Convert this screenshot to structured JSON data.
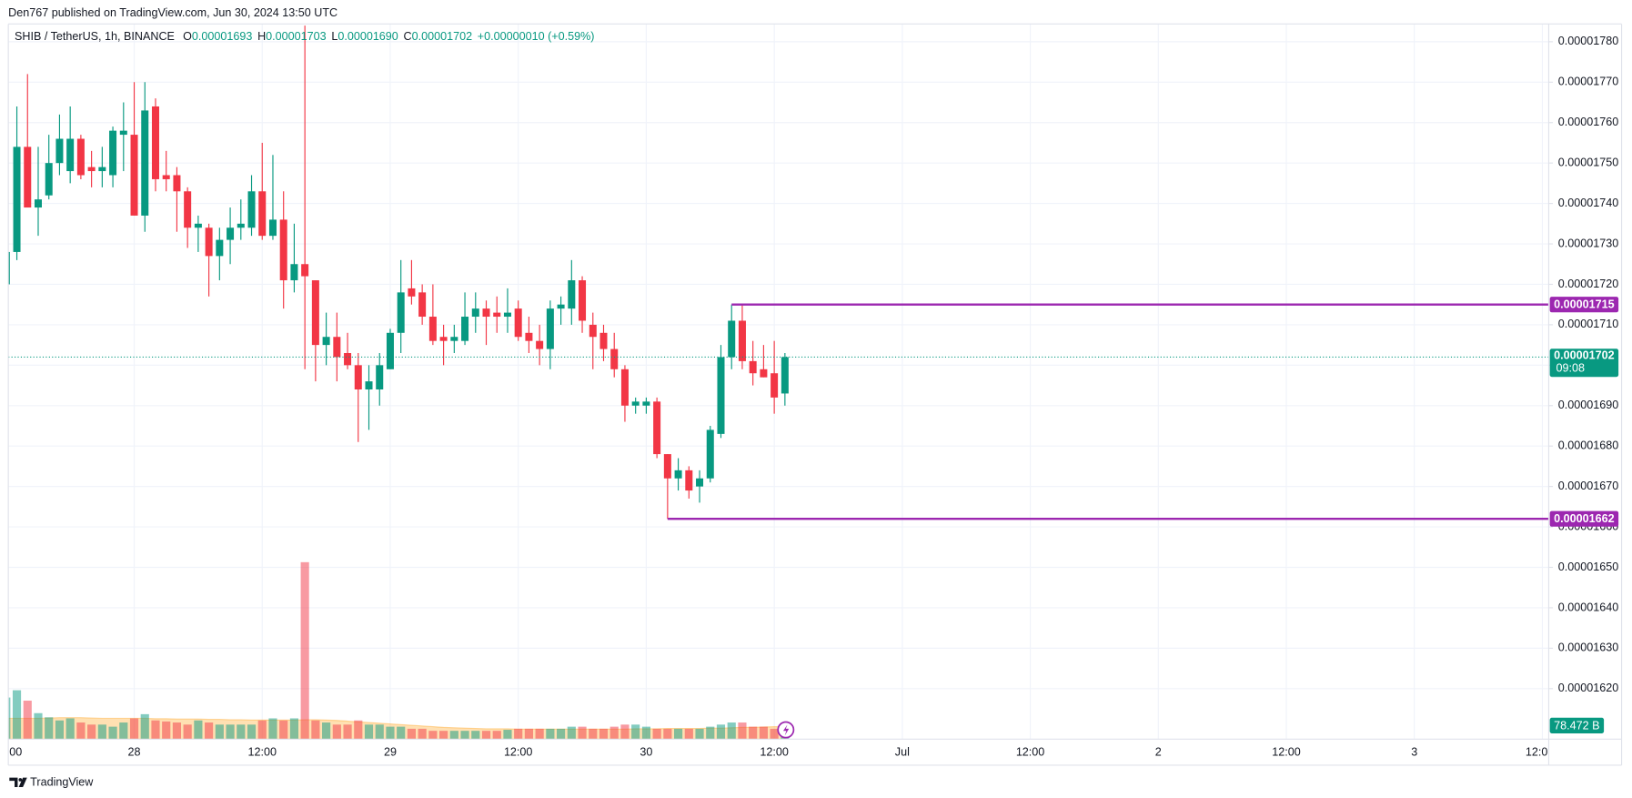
{
  "header": {
    "publisher": "Den767 published on TradingView.com, Jun 30, 2024 13:50 UTC"
  },
  "footer": {
    "brand": "TradingView"
  },
  "chart_data": {
    "type": "candlestick",
    "legend": {
      "symbol": "SHIB / TetherUS, 1h, BINANCE",
      "ohlc": [
        {
          "key": "O",
          "value": "0.00001693"
        },
        {
          "key": "H",
          "value": "0.00001703"
        },
        {
          "key": "L",
          "value": "0.00001690"
        },
        {
          "key": "C",
          "value": "0.00001702"
        }
      ],
      "change": "+0.00000010 (+0.59%)"
    },
    "up_color": "#089981",
    "down_color": "#f23645",
    "level_color": "#9c27b0",
    "volume_ma_color": "#ff9800",
    "grid": true,
    "xlim": [
      0.2,
      144.6
    ],
    "xticks": [
      {
        "value": 0,
        "label": "00"
      },
      {
        "value": 12,
        "label": "28"
      },
      {
        "value": 24,
        "label": "12:00"
      },
      {
        "value": 36,
        "label": "29"
      },
      {
        "value": 48,
        "label": "12:00"
      },
      {
        "value": 60,
        "label": "30"
      },
      {
        "value": 72,
        "label": "12:00"
      },
      {
        "value": 84,
        "label": "Jul"
      },
      {
        "value": 96,
        "label": "12:00"
      },
      {
        "value": 108,
        "label": "2"
      },
      {
        "value": 120,
        "label": "12:00"
      },
      {
        "value": 132,
        "label": "3"
      },
      {
        "value": 144,
        "label": "12:0"
      }
    ],
    "ylim": [
      1.6075e-05,
      1.7844e-05
    ],
    "yticks": [
      {
        "value": 1.62e-05,
        "label": "0.00001620"
      },
      {
        "value": 1.63e-05,
        "label": "0.00001630"
      },
      {
        "value": 1.64e-05,
        "label": "0.00001640"
      },
      {
        "value": 1.65e-05,
        "label": "0.00001650"
      },
      {
        "value": 1.66e-05,
        "label": "0.00001660"
      },
      {
        "value": 1.67e-05,
        "label": "0.00001670"
      },
      {
        "value": 1.68e-05,
        "label": "0.00001680"
      },
      {
        "value": 1.69e-05,
        "label": "0.00001690"
      },
      {
        "value": 1.7e-05,
        "label": "0.00001700"
      },
      {
        "value": 1.71e-05,
        "label": "0.00001710"
      },
      {
        "value": 1.72e-05,
        "label": "0.00001720"
      },
      {
        "value": 1.73e-05,
        "label": "0.00001730"
      },
      {
        "value": 1.74e-05,
        "label": "0.00001740"
      },
      {
        "value": 1.75e-05,
        "label": "0.00001750"
      },
      {
        "value": 1.76e-05,
        "label": "0.00001760"
      },
      {
        "value": 1.77e-05,
        "label": "0.00001770"
      },
      {
        "value": 1.78e-05,
        "label": "0.00001780"
      }
    ],
    "open": [
      1.72e-05,
      1.728e-05,
      1.754e-05,
      1.739e-05,
      1.742e-05,
      1.75e-05,
      1.748e-05,
      1.756e-05,
      1.749e-05,
      1.748e-05,
      1.747e-05,
      1.757e-05,
      1.757e-05,
      1.737e-05,
      1.764e-05,
      1.747e-05,
      1.747e-05,
      1.743e-05,
      1.734e-05,
      1.734e-05,
      1.727e-05,
      1.731e-05,
      1.734e-05,
      1.734e-05,
      1.743e-05,
      1.732e-05,
      1.736e-05,
      1.721e-05,
      1.725e-05,
      1.721e-05,
      1.705e-05,
      1.707e-05,
      1.703e-05,
      1.7e-05,
      1.694e-05,
      1.694e-05,
      1.699e-05,
      1.708e-05,
      1.719e-05,
      1.718e-05,
      1.712e-05,
      1.707e-05,
      1.706e-05,
      1.706e-05,
      1.712e-05,
      1.714e-05,
      1.713e-05,
      1.712e-05,
      1.714e-05,
      1.708e-05,
      1.706e-05,
      1.704e-05,
      1.714e-05,
      1.714e-05,
      1.721e-05,
      1.71e-05,
      1.708e-05,
      1.704e-05,
      1.699e-05,
      1.69e-05,
      1.69e-05,
      1.691e-05,
      1.678e-05,
      1.672e-05,
      1.674e-05,
      1.67e-05,
      1.672e-05,
      1.683e-05,
      1.702e-05,
      1.711e-05,
      1.701e-05,
      1.699e-05,
      1.698e-05,
      1.693e-05
    ],
    "high": [
      1.728e-05,
      1.764e-05,
      1.772e-05,
      1.754e-05,
      1.757e-05,
      1.762e-05,
      1.764e-05,
      1.757e-05,
      1.753e-05,
      1.754e-05,
      1.759e-05,
      1.765e-05,
      1.77e-05,
      1.77e-05,
      1.766e-05,
      1.753e-05,
      1.749e-05,
      1.744e-05,
      1.737e-05,
      1.735e-05,
      1.734e-05,
      1.739e-05,
      1.741e-05,
      1.747e-05,
      1.755e-05,
      1.752e-05,
      1.743e-05,
      1.735e-05,
      1.784e-05,
      1.721e-05,
      1.713e-05,
      1.713e-05,
      1.708e-05,
      1.703e-05,
      1.7e-05,
      1.703e-05,
      1.709e-05,
      1.726e-05,
      1.726e-05,
      1.72e-05,
      1.72e-05,
      1.71e-05,
      1.71e-05,
      1.718e-05,
      1.718e-05,
      1.716e-05,
      1.717e-05,
      1.719e-05,
      1.716e-05,
      1.712e-05,
      1.71e-05,
      1.716e-05,
      1.717e-05,
      1.726e-05,
      1.722e-05,
      1.713e-05,
      1.71e-05,
      1.708e-05,
      1.7e-05,
      1.692e-05,
      1.692e-05,
      1.692e-05,
      1.678e-05,
      1.677e-05,
      1.675e-05,
      1.674e-05,
      1.685e-05,
      1.705e-05,
      1.715e-05,
      1.715e-05,
      1.706e-05,
      1.705e-05,
      1.706e-05,
      1.703e-05
    ],
    "low": [
      1.72e-05,
      1.726e-05,
      1.739e-05,
      1.732e-05,
      1.741e-05,
      1.747e-05,
      1.745e-05,
      1.746e-05,
      1.744e-05,
      1.744e-05,
      1.744e-05,
      1.748e-05,
      1.737e-05,
      1.733e-05,
      1.743e-05,
      1.743e-05,
      1.733e-05,
      1.729e-05,
      1.728e-05,
      1.717e-05,
      1.721e-05,
      1.725e-05,
      1.731e-05,
      1.732e-05,
      1.731e-05,
      1.731e-05,
      1.714e-05,
      1.718e-05,
      1.699e-05,
      1.696e-05,
      1.7e-05,
      1.696e-05,
      1.699e-05,
      1.681e-05,
      1.684e-05,
      1.69e-05,
      1.699e-05,
      1.703e-05,
      1.715e-05,
      1.71e-05,
      1.705e-05,
      1.7e-05,
      1.703e-05,
      1.705e-05,
      1.708e-05,
      1.705e-05,
      1.708e-05,
      1.708e-05,
      1.706e-05,
      1.703e-05,
      1.7e-05,
      1.699e-05,
      1.71e-05,
      1.71e-05,
      1.708e-05,
      1.699e-05,
      1.701e-05,
      1.697e-05,
      1.686e-05,
      1.688e-05,
      1.688e-05,
      1.677e-05,
      1.662e-05,
      1.669e-05,
      1.667e-05,
      1.666e-05,
      1.671e-05,
      1.682e-05,
      1.699e-05,
      1.699e-05,
      1.695e-05,
      1.697e-05,
      1.688e-05,
      1.69e-05
    ],
    "close": [
      1.728e-05,
      1.754e-05,
      1.739e-05,
      1.741e-05,
      1.75e-05,
      1.756e-05,
      1.756e-05,
      1.747e-05,
      1.748e-05,
      1.749e-05,
      1.758e-05,
      1.758e-05,
      1.737e-05,
      1.763e-05,
      1.746e-05,
      1.746e-05,
      1.743e-05,
      1.734e-05,
      1.735e-05,
      1.727e-05,
      1.731e-05,
      1.734e-05,
      1.735e-05,
      1.743e-05,
      1.732e-05,
      1.736e-05,
      1.721e-05,
      1.725e-05,
      1.722e-05,
      1.705e-05,
      1.707e-05,
      1.702e-05,
      1.7e-05,
      1.694e-05,
      1.696e-05,
      1.7e-05,
      1.708e-05,
      1.718e-05,
      1.717e-05,
      1.712e-05,
      1.706e-05,
      1.706e-05,
      1.707e-05,
      1.712e-05,
      1.714e-05,
      1.712e-05,
      1.712e-05,
      1.713e-05,
      1.707e-05,
      1.706e-05,
      1.704e-05,
      1.714e-05,
      1.715e-05,
      1.721e-05,
      1.711e-05,
      1.707e-05,
      1.704e-05,
      1.699e-05,
      1.69e-05,
      1.691e-05,
      1.691e-05,
      1.678e-05,
      1.672e-05,
      1.674e-05,
      1.669e-05,
      1.672e-05,
      1.684e-05,
      1.702e-05,
      1.711e-05,
      1.701e-05,
      1.698e-05,
      1.697e-05,
      1.692e-05,
      1.702e-05
    ],
    "volume": [
      240,
      282,
      222,
      150,
      126,
      108,
      120,
      96,
      84,
      84,
      72,
      96,
      120,
      144,
      108,
      102,
      96,
      84,
      108,
      96,
      84,
      84,
      84,
      84,
      108,
      120,
      108,
      120,
      1020,
      108,
      96,
      84,
      84,
      108,
      84,
      84,
      72,
      72,
      60,
      60,
      48,
      48,
      48,
      48,
      48,
      48,
      48,
      54,
      60,
      60,
      60,
      60,
      60,
      72,
      72,
      60,
      60,
      72,
      84,
      84,
      72,
      60,
      60,
      60,
      60,
      60,
      72,
      84,
      96,
      96,
      72,
      72,
      60,
      78.472
    ],
    "volume_ma": [
      120,
      120,
      120,
      120,
      122,
      124,
      124,
      124,
      122,
      120,
      120,
      120,
      120,
      120,
      118,
      118,
      116,
      116,
      116,
      114,
      114,
      112,
      112,
      110,
      110,
      110,
      110,
      110,
      112,
      112,
      110,
      108,
      104,
      100,
      96,
      92,
      88,
      84,
      80,
      76,
      72,
      68,
      66,
      64,
      62,
      60,
      60,
      60,
      58,
      58,
      58,
      58,
      58,
      58,
      58,
      58,
      58,
      58,
      58,
      60,
      60,
      60,
      62,
      62,
      62,
      62,
      64,
      64,
      66,
      68,
      68,
      70,
      72,
      72
    ],
    "volume_label": {
      "value": 78.472,
      "label": "78.472 B"
    },
    "last": {
      "value": 1.702e-05,
      "label": "0.00001702",
      "countdown": "09:08"
    },
    "levels": [
      {
        "value": 1.715e-05,
        "label": "0.00001715",
        "from": 68
      },
      {
        "value": 1.662e-05,
        "label": "0.00001662",
        "from": 62
      }
    ]
  }
}
